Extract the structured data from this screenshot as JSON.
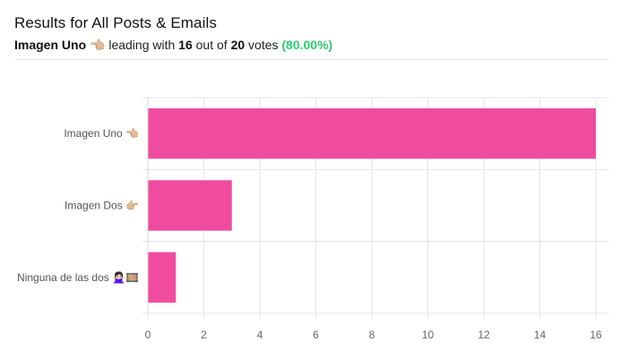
{
  "header": {
    "title": "Results for All Posts & Emails",
    "leader_name": "Imagen Uno 👈🏼",
    "leader_mid": " leading with ",
    "leader_votes": "16",
    "out_of": " out of ",
    "total_votes": "20",
    "votes_word": " votes ",
    "percent": "(80.00%)"
  },
  "colors": {
    "bar": "#ef4b9f",
    "percent_green": "#2ecc71",
    "grid": "#e6e6e6"
  },
  "chart_data": {
    "type": "bar",
    "orientation": "horizontal",
    "categories": [
      "Imagen Uno 👈🏼",
      "Imagen Dos 👉🏼",
      "Ninguna de las dos 🙅🏻‍♀️🎞️"
    ],
    "values": [
      16,
      3,
      1
    ],
    "xlim": [
      0,
      16
    ],
    "xticks": [
      0,
      2,
      4,
      6,
      8,
      10,
      12,
      14,
      16
    ],
    "grid": true
  }
}
